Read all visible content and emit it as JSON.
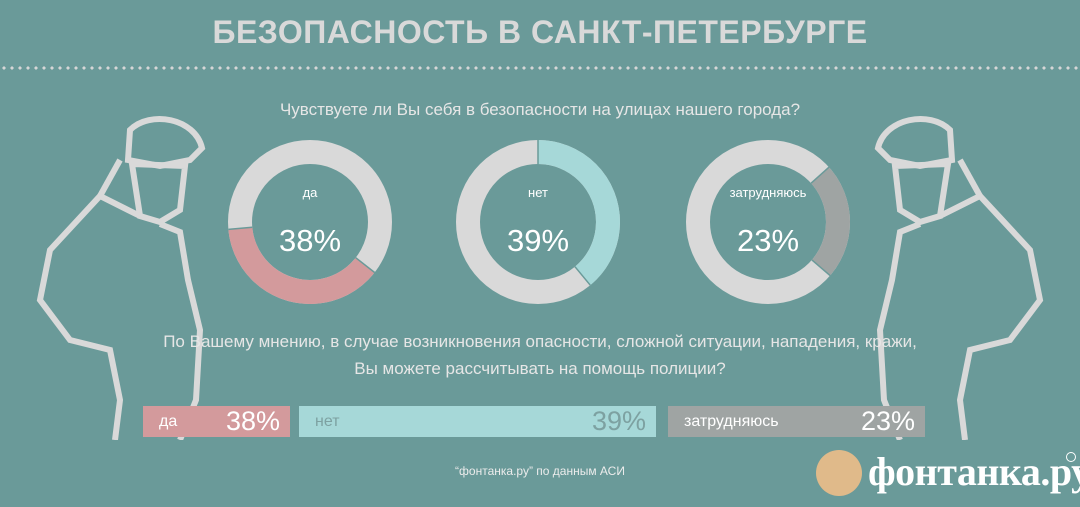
{
  "header": {
    "title": "БЕЗОПАСНОСТЬ В САНКТ-ПЕТЕРБУРГЕ"
  },
  "question_1": "Чувствуете ли Вы себя в безопасности на улицах нашего города?",
  "question_2_line1": "По Вашему мнению, в случае возникновения опасности, сложной ситуации, нападения, кражи,",
  "question_2_line2": "Вы можете рассчитывать на помощь полиции?",
  "source": "“фонтанка.ру” по данным АСИ",
  "logo_text": "фонтанка.ру",
  "colors": {
    "background": "#6a9a99",
    "ring_base": "#d9d9d9",
    "yes": "#d39a9c",
    "no": "#a6d8d8",
    "unsure": "#9fa4a3"
  },
  "chart_data": [
    {
      "type": "pie",
      "title": "Чувствуете ли Вы себя в безопасности на улицах нашего города?",
      "series": [
        {
          "name": "да",
          "value": 38,
          "label": "38%",
          "color": "#d39a9c"
        },
        {
          "name": "нет",
          "value": 39,
          "label": "39%",
          "color": "#a6d8d8"
        },
        {
          "name": "затрудняюсь",
          "value": 23,
          "label": "23%",
          "color": "#9fa4a3"
        }
      ]
    },
    {
      "type": "bar",
      "title": "По Вашему мнению, в случае возникновения опасности, сложной ситуации, нападения, кражи, Вы можете рассчитывать на помощь полиции?",
      "categories": [
        "да",
        "нет",
        "затрудняюсь"
      ],
      "values": [
        38,
        39,
        23
      ],
      "labels": [
        "38%",
        "39%",
        "23%"
      ]
    }
  ]
}
